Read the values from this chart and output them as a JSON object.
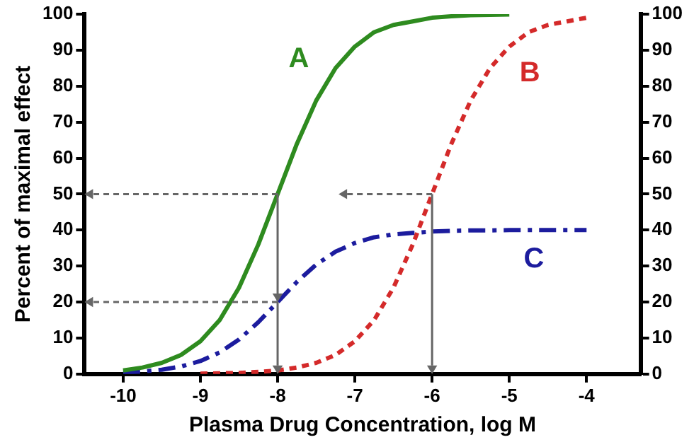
{
  "chart_data": {
    "type": "line",
    "xlabel": "Plasma Drug Concentration, log M",
    "ylabel": "Percent of maximal effect",
    "xlim": [
      -10.5,
      -3.3
    ],
    "xticks": [
      -10,
      -9,
      -8,
      -7,
      -6,
      -5,
      -4
    ],
    "ylim": [
      0,
      100
    ],
    "yticks": [
      0,
      10,
      20,
      30,
      40,
      50,
      60,
      70,
      80,
      90,
      100
    ],
    "y2lim": [
      0,
      100
    ],
    "y2ticks": [
      0,
      10,
      20,
      30,
      40,
      50,
      60,
      70,
      80,
      90,
      100
    ],
    "grid": false,
    "legend": false,
    "marker": "none",
    "series": [
      {
        "name": "A",
        "color": "#2e8b1f",
        "line_style": "solid",
        "x": [
          -10,
          -9.75,
          -9.5,
          -9.25,
          -9,
          -8.75,
          -8.5,
          -8.25,
          -8,
          -7.75,
          -7.5,
          -7.25,
          -7,
          -6.75,
          -6.5,
          -6.25,
          -6,
          -5.75,
          -5.5,
          -5.25,
          -5
        ],
        "values": [
          1,
          1.8,
          3.1,
          5.3,
          9.1,
          15,
          24,
          36,
          50,
          64,
          76,
          85,
          91,
          95,
          97,
          98,
          99,
          99.4,
          99.7,
          99.8,
          99.9
        ]
      },
      {
        "name": "B",
        "color": "#d42a2a",
        "line_style": "dotted",
        "x": [
          -9,
          -8.75,
          -8.5,
          -8.25,
          -8,
          -7.75,
          -7.5,
          -7.25,
          -7,
          -6.75,
          -6.5,
          -6.25,
          -6,
          -5.75,
          -5.5,
          -5.25,
          -5,
          -4.75,
          -4.5,
          -4.25,
          -4
        ],
        "values": [
          0.1,
          0.2,
          0.3,
          0.6,
          1,
          1.8,
          3.1,
          5.3,
          9.1,
          15,
          24,
          36,
          50,
          64,
          76,
          85,
          91,
          95,
          97,
          98,
          99
        ]
      },
      {
        "name": "C",
        "color": "#1c1c9e",
        "line_style": "dashed",
        "x": [
          -10,
          -9.75,
          -9.5,
          -9.25,
          -9,
          -8.75,
          -8.5,
          -8.25,
          -8,
          -7.75,
          -7.5,
          -7.25,
          -7,
          -6.75,
          -6.5,
          -6.25,
          -6,
          -5.75,
          -5.5,
          -5.25,
          -5,
          -4.75,
          -4.5,
          -4.25,
          -4
        ],
        "values": [
          0.4,
          0.7,
          1.2,
          2.1,
          3.6,
          6,
          9.6,
          14.4,
          20,
          25.6,
          30.4,
          34,
          36.4,
          38,
          38.8,
          39.2,
          39.6,
          39.8,
          39.9,
          39.9,
          40,
          40,
          40,
          40,
          40
        ]
      }
    ]
  }
}
